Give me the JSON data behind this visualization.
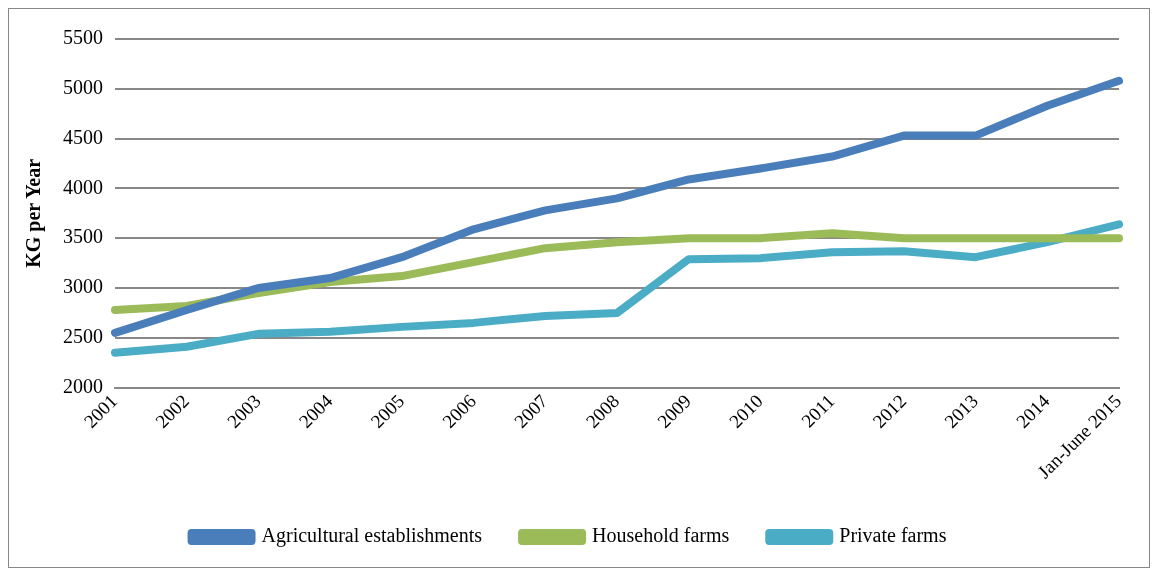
{
  "chart_data": {
    "type": "line",
    "ylabel": "KG per Year",
    "categories": [
      "2001",
      "2002",
      "2003",
      "2004",
      "2005",
      "2006",
      "2007",
      "2008",
      "2009",
      "2010",
      "2011",
      "2012",
      "2013",
      "2014",
      "Jan-June 2015"
    ],
    "series": [
      {
        "name": "Agricultural establishments",
        "color": "#4a7ebb",
        "values": [
          2550,
          2780,
          3000,
          3100,
          3310,
          3590,
          3780,
          3900,
          4090,
          4200,
          4320,
          4530,
          4530,
          4830,
          5080
        ]
      },
      {
        "name": "Household farms",
        "color": "#9bbb59",
        "values": [
          2780,
          2820,
          2950,
          3060,
          3120,
          3260,
          3400,
          3460,
          3500,
          3500,
          3550,
          3500,
          3500,
          3500,
          3500
        ]
      },
      {
        "name": "Private farms",
        "color": "#4bacc6",
        "values": [
          2350,
          2410,
          2540,
          2560,
          2610,
          2650,
          2720,
          2750,
          3290,
          3300,
          3360,
          3370,
          3310,
          3460,
          3640
        ]
      }
    ],
    "ylim": [
      2000,
      5500
    ],
    "yticks": [
      2000,
      2500,
      3000,
      3500,
      4000,
      4500,
      5000,
      5500
    ],
    "grid": "y",
    "legend": "bottom",
    "marker": "none",
    "line_style": "solid"
  }
}
